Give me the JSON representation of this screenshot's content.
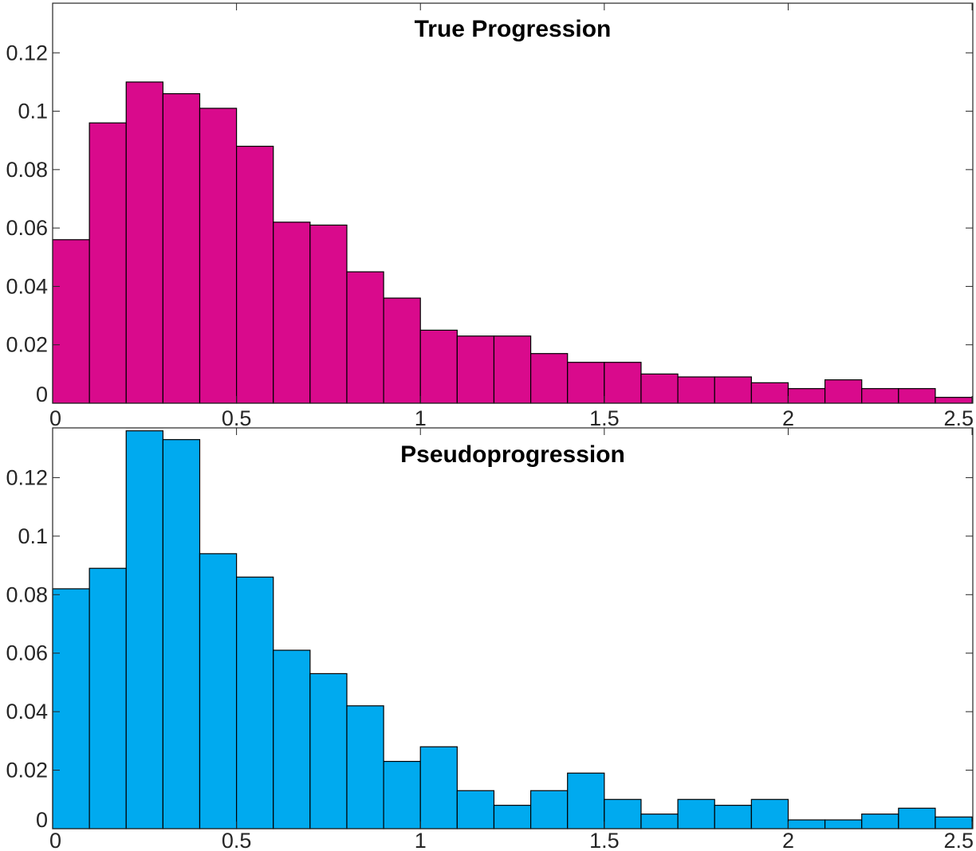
{
  "chart_data": [
    {
      "type": "bar",
      "title": "True Progression",
      "bin_width": 0.1,
      "x": [
        0.05,
        0.15,
        0.25,
        0.35,
        0.45,
        0.55,
        0.65,
        0.75,
        0.85,
        0.95,
        1.05,
        1.15,
        1.25,
        1.35,
        1.45,
        1.55,
        1.65,
        1.75,
        1.85,
        1.95,
        2.05,
        2.15,
        2.25,
        2.35,
        2.45
      ],
      "values": [
        0.056,
        0.096,
        0.11,
        0.106,
        0.101,
        0.088,
        0.062,
        0.061,
        0.045,
        0.036,
        0.025,
        0.023,
        0.023,
        0.017,
        0.014,
        0.014,
        0.01,
        0.009,
        0.009,
        0.007,
        0.005,
        0.008,
        0.005,
        0.005,
        0.002
      ],
      "xlim": [
        0,
        2.5
      ],
      "ylim": [
        0,
        0.137
      ],
      "xticks": [
        "0",
        "0.5",
        "1",
        "1.5",
        "2",
        "2.5"
      ],
      "yticks": [
        "0",
        "0.02",
        "0.04",
        "0.06",
        "0.08",
        "0.1",
        "0.12"
      ],
      "color": "#d90a8c",
      "xlabel": "",
      "ylabel": ""
    },
    {
      "type": "bar",
      "title": "Pseudoprogression",
      "bin_width": 0.1,
      "x": [
        0.05,
        0.15,
        0.25,
        0.35,
        0.45,
        0.55,
        0.65,
        0.75,
        0.85,
        0.95,
        1.05,
        1.15,
        1.25,
        1.35,
        1.45,
        1.55,
        1.65,
        1.75,
        1.85,
        1.95,
        2.05,
        2.15,
        2.25,
        2.35,
        2.45
      ],
      "values": [
        0.082,
        0.089,
        0.136,
        0.133,
        0.094,
        0.086,
        0.061,
        0.053,
        0.042,
        0.023,
        0.028,
        0.013,
        0.008,
        0.013,
        0.019,
        0.01,
        0.005,
        0.01,
        0.008,
        0.01,
        0.003,
        0.003,
        0.005,
        0.007,
        0.004
      ],
      "xlim": [
        0,
        2.5
      ],
      "ylim": [
        0,
        0.137
      ],
      "xticks": [
        "0",
        "0.5",
        "1",
        "1.5",
        "2",
        "2.5"
      ],
      "yticks": [
        "0",
        "0.02",
        "0.04",
        "0.06",
        "0.08",
        "0.1",
        "0.12"
      ],
      "color": "#00aaef",
      "xlabel": "",
      "ylabel": ""
    }
  ]
}
